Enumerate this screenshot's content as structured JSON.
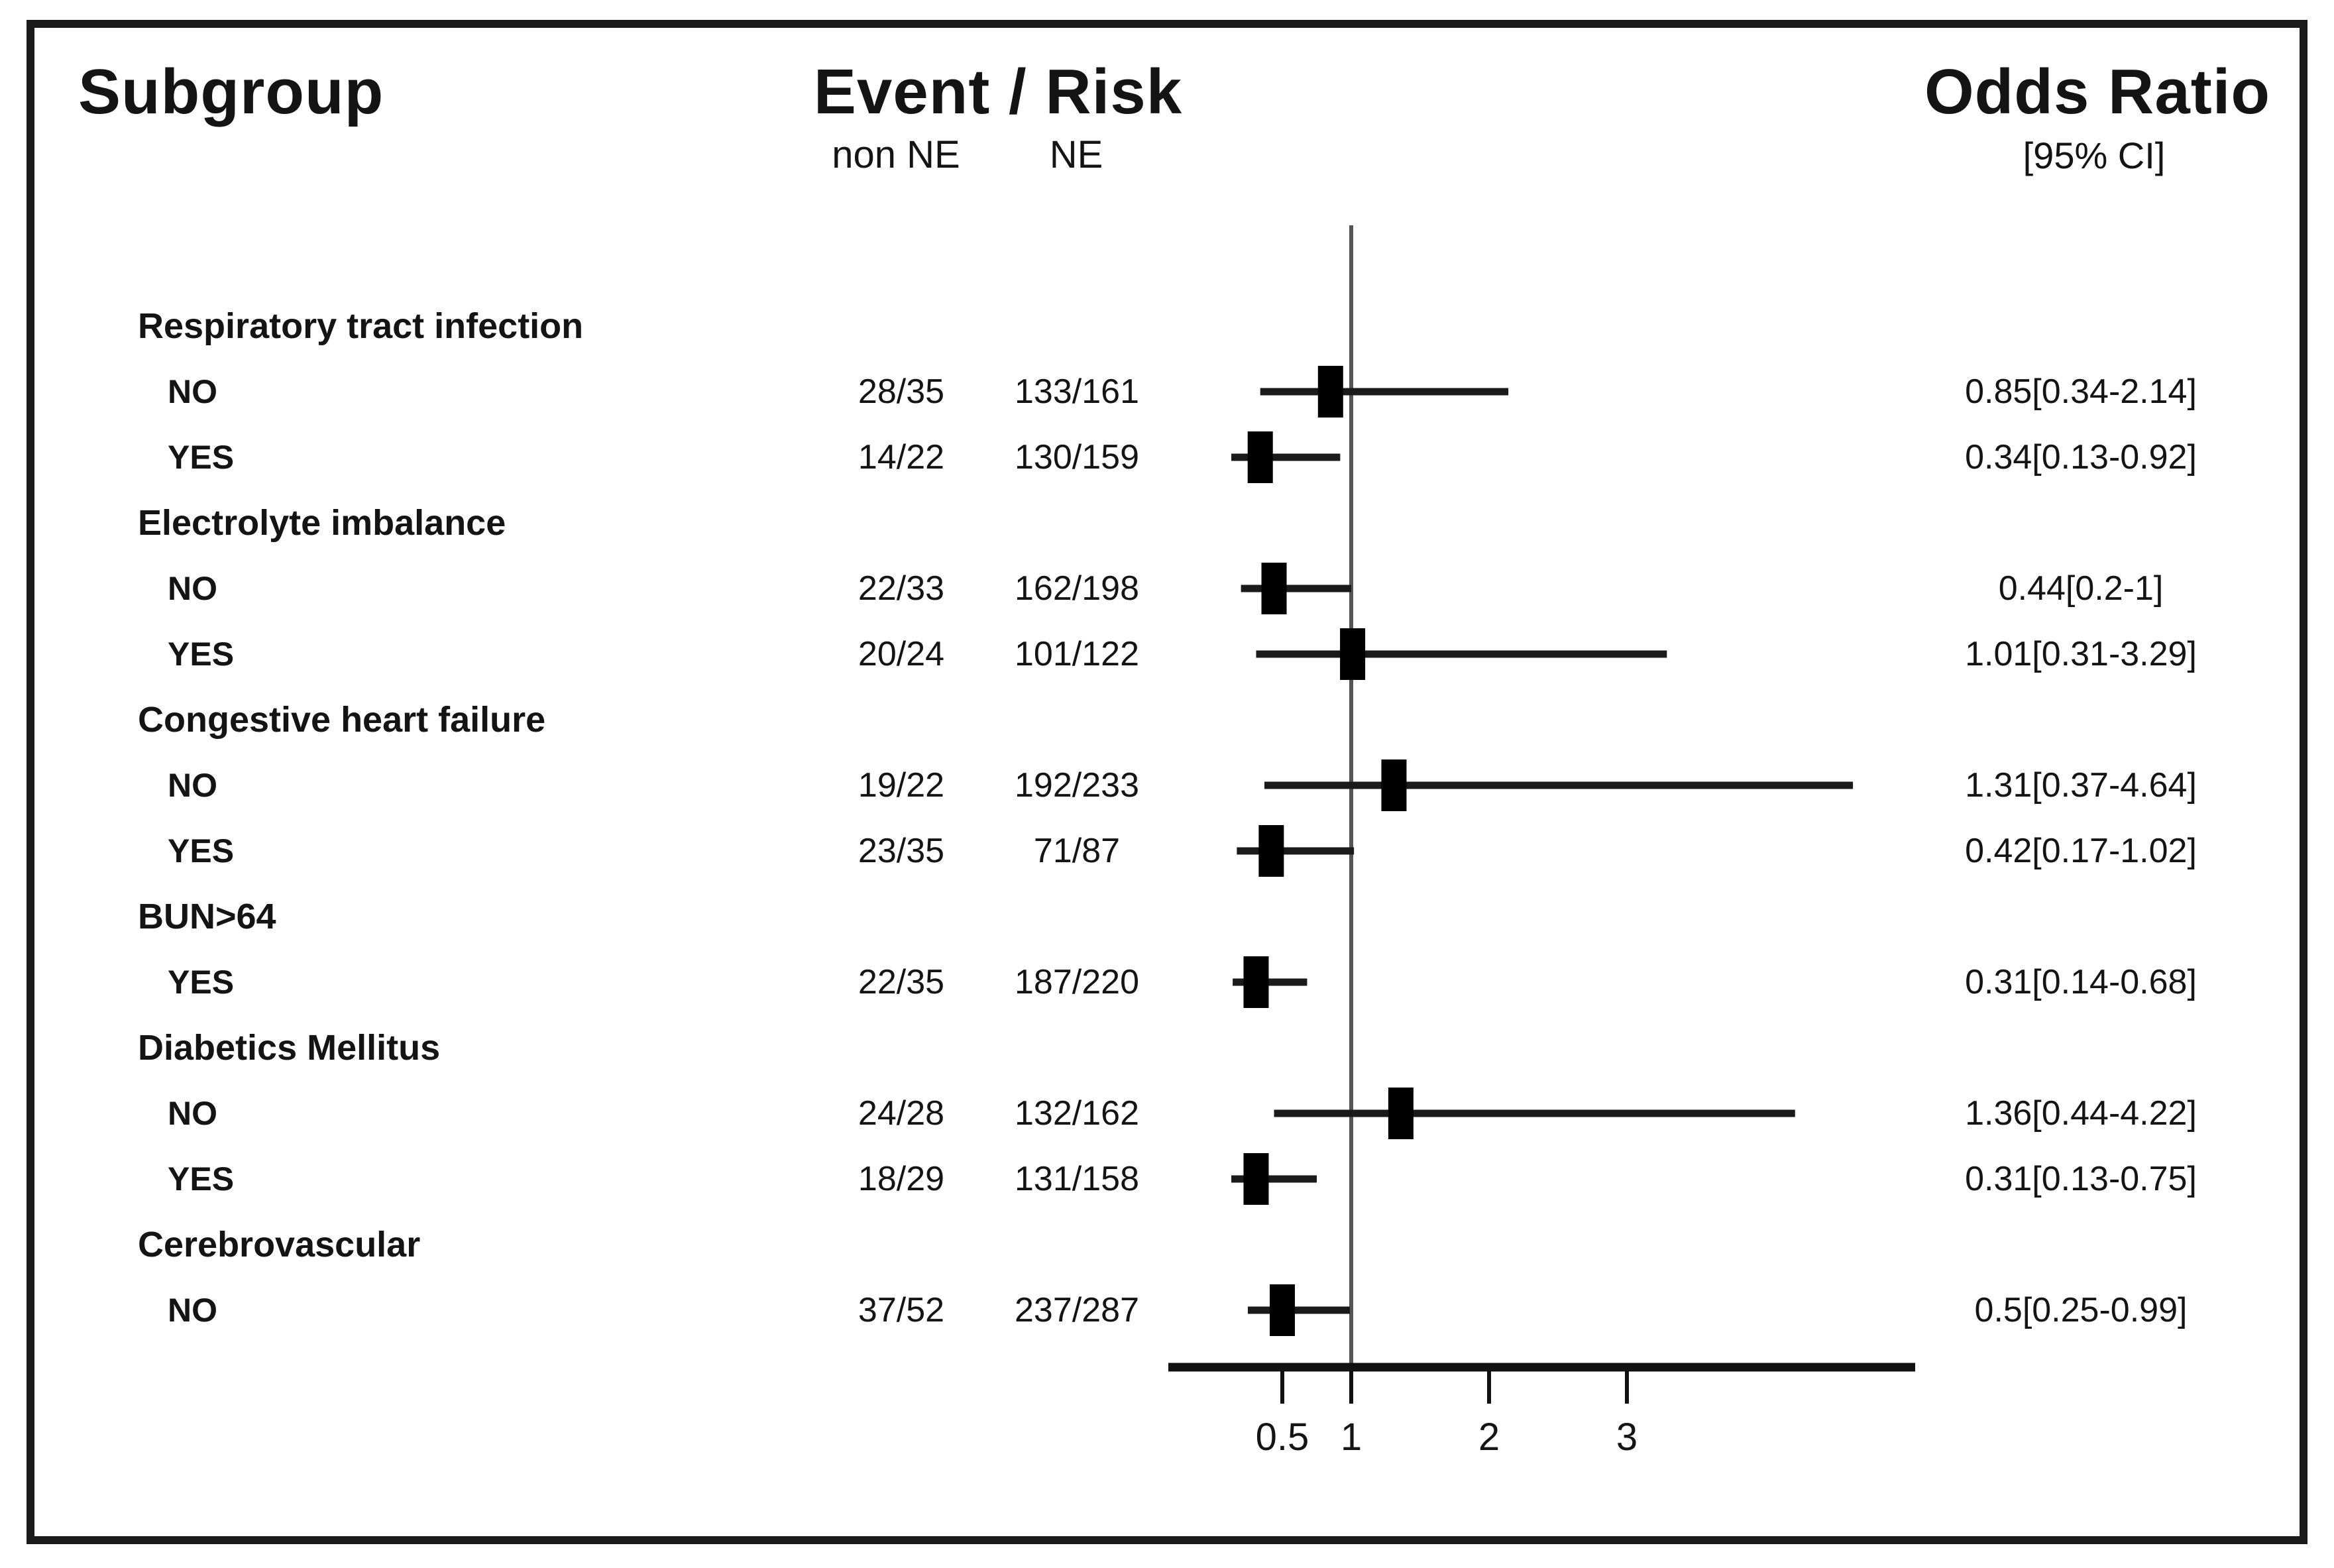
{
  "header": {
    "subgroup": "Subgroup",
    "event_risk": "Event / Risk",
    "non_ne": "non NE",
    "ne": "NE",
    "odds_ratio": "Odds Ratio",
    "ci": "[95% CI]"
  },
  "colors": {
    "text": "#141414",
    "axis_line": "#111111",
    "whisker": "#1a1a1a",
    "marker": "#000000",
    "reference_line": "#555555",
    "frame": "#1a1a1a",
    "background": "#ffffff"
  },
  "chart_data": {
    "type": "scatter",
    "subtype": "forest-plot",
    "title": "Subgroup odds ratio forest plot",
    "x_axis": {
      "scale": "linear",
      "ticks": [
        0.5,
        1,
        2,
        3
      ],
      "tick_labels": [
        "0.5",
        "1",
        "2",
        "3"
      ],
      "reference_line": 1.0
    },
    "columns": [
      "Subgroup",
      "non NE",
      "NE",
      "Odds Ratio [95% CI]"
    ],
    "rows": [
      {
        "kind": "group",
        "label": "Respiratory tract infection"
      },
      {
        "kind": "item",
        "label": "NO",
        "non_ne": "28/35",
        "ne": "133/161",
        "or": 0.85,
        "lo": 0.34,
        "hi": 2.14,
        "ci_text": "0.85[0.34-2.14]"
      },
      {
        "kind": "item",
        "label": "YES",
        "non_ne": "14/22",
        "ne": "130/159",
        "or": 0.34,
        "lo": 0.13,
        "hi": 0.92,
        "ci_text": "0.34[0.13-0.92]"
      },
      {
        "kind": "group",
        "label": "Electrolyte imbalance"
      },
      {
        "kind": "item",
        "label": "NO",
        "non_ne": "22/33",
        "ne": "162/198",
        "or": 0.44,
        "lo": 0.2,
        "hi": 1.0,
        "ci_text": "0.44[0.2-1]"
      },
      {
        "kind": "item",
        "label": "YES",
        "non_ne": "20/24",
        "ne": "101/122",
        "or": 1.01,
        "lo": 0.31,
        "hi": 3.29,
        "ci_text": "1.01[0.31-3.29]"
      },
      {
        "kind": "group",
        "label": "Congestive heart failure"
      },
      {
        "kind": "item",
        "label": "NO",
        "non_ne": "19/22",
        "ne": "192/233",
        "or": 1.31,
        "lo": 0.37,
        "hi": 4.64,
        "ci_text": "1.31[0.37-4.64]"
      },
      {
        "kind": "item",
        "label": "YES",
        "non_ne": "23/35",
        "ne": "71/87",
        "or": 0.42,
        "lo": 0.17,
        "hi": 1.02,
        "ci_text": "0.42[0.17-1.02]"
      },
      {
        "kind": "group",
        "label": "BUN>64"
      },
      {
        "kind": "item",
        "label": "YES",
        "non_ne": "22/35",
        "ne": "187/220",
        "or": 0.31,
        "lo": 0.14,
        "hi": 0.68,
        "ci_text": "0.31[0.14-0.68]"
      },
      {
        "kind": "group",
        "label": "Diabetics Mellitus"
      },
      {
        "kind": "item",
        "label": "NO",
        "non_ne": "24/28",
        "ne": "132/162",
        "or": 1.36,
        "lo": 0.44,
        "hi": 4.22,
        "ci_text": "1.36[0.44-4.22]"
      },
      {
        "kind": "item",
        "label": "YES",
        "non_ne": "18/29",
        "ne": "131/158",
        "or": 0.31,
        "lo": 0.13,
        "hi": 0.75,
        "ci_text": "0.31[0.13-0.75]"
      },
      {
        "kind": "group",
        "label": "Cerebrovascular"
      },
      {
        "kind": "item",
        "label": "NO",
        "non_ne": "37/52",
        "ne": "237/287",
        "or": 0.5,
        "lo": 0.25,
        "hi": 0.99,
        "ci_text": "0.5[0.25-0.99]"
      }
    ]
  }
}
